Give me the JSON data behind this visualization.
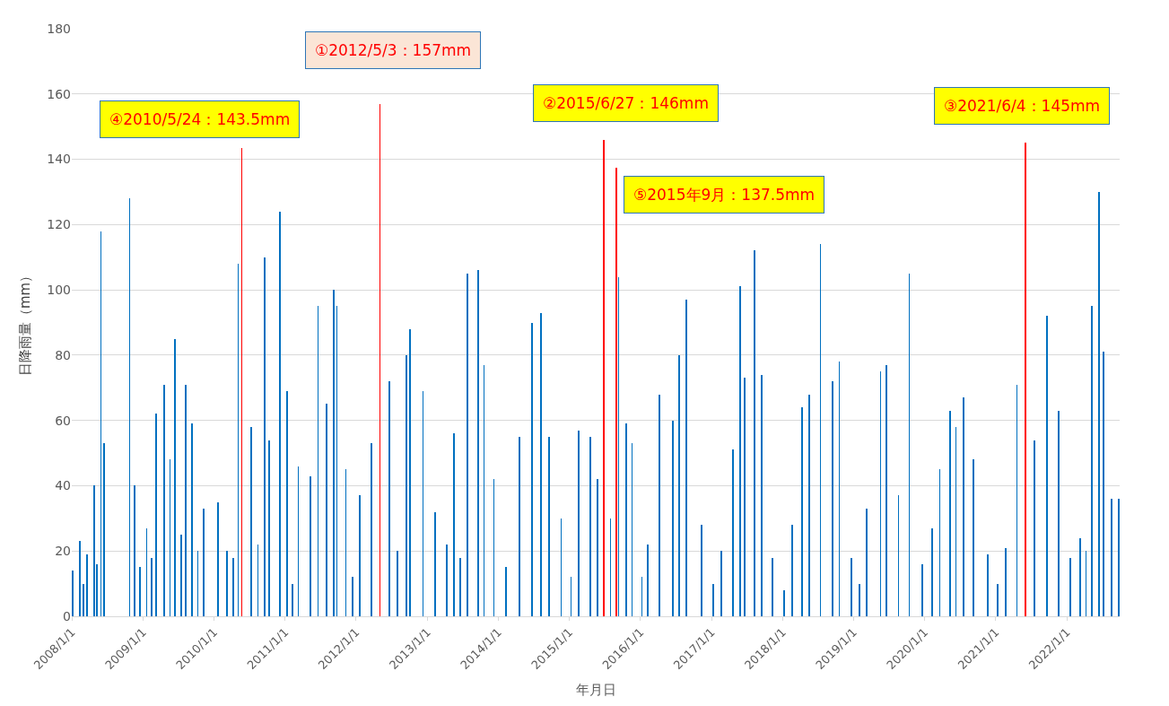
{
  "chart_data": {
    "type": "bar",
    "xlabel": "年月日",
    "ylabel": "日降雨量（mm）",
    "x": [
      "2008-01-05",
      "2008-02-10",
      "2008-03-01",
      "2008-03-20",
      "2008-04-25",
      "2008-05-10",
      "2008-05-30",
      "2008-06-15",
      "2008-10-25",
      "2008-11-20",
      "2008-12-15",
      "2009-01-20",
      "2009-02-15",
      "2009-03-10",
      "2009-04-20",
      "2009-05-20",
      "2009-06-15",
      "2009-07-15",
      "2009-08-10",
      "2009-09-10",
      "2009-10-10",
      "2009-11-10",
      "2010-01-20",
      "2010-03-10",
      "2010-04-10",
      "2010-05-05",
      "2010-05-24",
      "2010-07-10",
      "2010-08-15",
      "2010-09-20",
      "2010-10-10",
      "2010-12-05",
      "2011-01-10",
      "2011-02-10",
      "2011-03-10",
      "2011-05-10",
      "2011-06-20",
      "2011-08-01",
      "2011-09-10",
      "2011-09-25",
      "2011-11-10",
      "2011-12-15",
      "2012-01-20",
      "2012-03-20",
      "2012-05-03",
      "2012-06-20",
      "2012-08-01",
      "2012-09-15",
      "2012-10-05",
      "2012-12-10",
      "2013-02-10",
      "2013-04-10",
      "2013-05-20",
      "2013-06-20",
      "2013-07-28",
      "2013-09-20",
      "2013-10-20",
      "2013-12-10",
      "2014-02-10",
      "2014-04-20",
      "2014-06-25",
      "2014-08-10",
      "2014-09-20",
      "2014-11-20",
      "2015-01-10",
      "2015-02-20",
      "2015-04-20",
      "2015-05-25",
      "2015-06-27",
      "2015-08-01",
      "2015-09",
      "2015-09-12",
      "2015-10-20",
      "2015-11-20",
      "2016-01-10",
      "2016-02-10",
      "2016-04-10",
      "2016-06-15",
      "2016-07-20",
      "2016-08-25",
      "2016-11-10",
      "2017-01-10",
      "2017-02-20",
      "2017-04-20",
      "2017-05-30",
      "2017-06-20",
      "2017-08-10",
      "2017-09-15",
      "2017-11-10",
      "2018-01-10",
      "2018-02-20",
      "2018-04-10",
      "2018-05-20",
      "2018-07-15",
      "2018-09-15",
      "2018-10-20",
      "2018-12-20",
      "2019-02-01",
      "2019-03-10",
      "2019-05-20",
      "2019-06-20",
      "2019-08-20",
      "2019-10-15",
      "2019-12-20",
      "2020-02-10",
      "2020-03-20",
      "2020-05-10",
      "2020-06-10",
      "2020-07-20",
      "2020-09-10",
      "2020-11-20",
      "2021-01-10",
      "2021-02-20",
      "2021-04-20",
      "2021-06-04",
      "2021-07-20",
      "2021-09-20",
      "2021-11-20",
      "2022-01-20",
      "2022-03-10",
      "2022-04-10",
      "2022-05-10",
      "2022-06-15",
      "2022-07-10",
      "2022-08-20",
      "2022-09-25"
    ],
    "values": [
      14,
      23,
      10,
      19,
      40,
      16,
      118,
      53,
      128,
      40,
      15,
      27,
      18,
      62,
      71,
      48,
      85,
      25,
      71,
      59,
      20,
      33,
      35,
      20,
      18,
      108,
      143.5,
      58,
      22,
      110,
      54,
      124,
      69,
      10,
      46,
      43,
      95,
      65,
      100,
      95,
      45,
      12,
      37,
      53,
      157,
      72,
      20,
      80,
      88,
      69,
      32,
      22,
      56,
      18,
      105,
      106,
      77,
      42,
      15,
      55,
      90,
      93,
      55,
      30,
      12,
      57,
      55,
      42,
      146,
      30,
      137.5,
      104,
      59,
      53,
      12,
      22,
      68,
      60,
      80,
      97,
      28,
      10,
      20,
      51,
      101,
      73,
      112,
      74,
      18,
      8,
      28,
      64,
      68,
      114,
      72,
      78,
      18,
      10,
      33,
      75,
      77,
      37,
      105,
      16,
      27,
      45,
      63,
      58,
      67,
      48,
      19,
      10,
      21,
      71,
      145,
      54,
      92,
      63,
      18,
      24,
      20,
      95,
      130,
      81,
      36,
      36
    ],
    "colors": [
      "#0070c0",
      "#0070c0",
      "#0070c0",
      "#0070c0",
      "#0070c0",
      "#0070c0",
      "#0070c0",
      "#0070c0",
      "#0070c0",
      "#0070c0",
      "#0070c0",
      "#0070c0",
      "#0070c0",
      "#0070c0",
      "#0070c0",
      "#0070c0",
      "#0070c0",
      "#0070c0",
      "#0070c0",
      "#0070c0",
      "#0070c0",
      "#0070c0",
      "#0070c0",
      "#0070c0",
      "#0070c0",
      "#0070c0",
      "#ff0000",
      "#0070c0",
      "#0070c0",
      "#0070c0",
      "#0070c0",
      "#0070c0",
      "#0070c0",
      "#0070c0",
      "#0070c0",
      "#0070c0",
      "#0070c0",
      "#0070c0",
      "#0070c0",
      "#0070c0",
      "#0070c0",
      "#0070c0",
      "#0070c0",
      "#0070c0",
      "#ff0000",
      "#0070c0",
      "#0070c0",
      "#0070c0",
      "#0070c0",
      "#0070c0",
      "#0070c0",
      "#0070c0",
      "#0070c0",
      "#0070c0",
      "#0070c0",
      "#0070c0",
      "#0070c0",
      "#0070c0",
      "#0070c0",
      "#0070c0",
      "#0070c0",
      "#0070c0",
      "#0070c0",
      "#0070c0",
      "#0070c0",
      "#0070c0",
      "#0070c0",
      "#0070c0",
      "#ff0000",
      "#0070c0",
      "#ff0000",
      "#0070c0",
      "#0070c0",
      "#0070c0",
      "#0070c0",
      "#0070c0",
      "#0070c0",
      "#0070c0",
      "#0070c0",
      "#0070c0",
      "#0070c0",
      "#0070c0",
      "#0070c0",
      "#0070c0",
      "#0070c0",
      "#0070c0",
      "#0070c0",
      "#0070c0",
      "#0070c0",
      "#0070c0",
      "#0070c0",
      "#0070c0",
      "#0070c0",
      "#0070c0",
      "#0070c0",
      "#0070c0",
      "#0070c0",
      "#0070c0",
      "#0070c0",
      "#0070c0",
      "#0070c0",
      "#0070c0",
      "#0070c0",
      "#0070c0",
      "#0070c0",
      "#0070c0",
      "#0070c0",
      "#0070c0",
      "#0070c0",
      "#0070c0",
      "#0070c0",
      "#0070c0",
      "#0070c0",
      "#0070c0",
      "#ff0000",
      "#0070c0",
      "#0070c0",
      "#0070c0",
      "#0070c0",
      "#0070c0",
      "#0070c0",
      "#0070c0",
      "#0070c0",
      "#0070c0",
      "#0070c0",
      "#0070c0"
    ],
    "xlim": [
      "2008-01-01",
      "2022-09-30"
    ],
    "xticks": [
      {
        "value": "2008-01-01",
        "label": "2008/1/1"
      },
      {
        "value": "2009-01-01",
        "label": "2009/1/1"
      },
      {
        "value": "2010-01-01",
        "label": "2010/1/1"
      },
      {
        "value": "2011-01-01",
        "label": "2011/1/1"
      },
      {
        "value": "2012-01-01",
        "label": "2012/1/1"
      },
      {
        "value": "2013-01-01",
        "label": "2013/1/1"
      },
      {
        "value": "2014-01-01",
        "label": "2014/1/1"
      },
      {
        "value": "2015-01-01",
        "label": "2015/1/1"
      },
      {
        "value": "2016-01-01",
        "label": "2016/1/1"
      },
      {
        "value": "2017-01-01",
        "label": "2017/1/1"
      },
      {
        "value": "2018-01-01",
        "label": "2018/1/1"
      },
      {
        "value": "2019-01-01",
        "label": "2019/1/1"
      },
      {
        "value": "2020-01-01",
        "label": "2020/1/1"
      },
      {
        "value": "2021-01-01",
        "label": "2021/1/1"
      },
      {
        "value": "2022-01-01",
        "label": "2022/1/1"
      }
    ],
    "ylim": [
      0,
      180
    ],
    "yticks": [
      0,
      20,
      40,
      60,
      80,
      100,
      120,
      140,
      160,
      180
    ],
    "grid": "y",
    "annotations": [
      {
        "text": "①2012/5/3：157mm",
        "x": "2012-05-03",
        "y": 157
      },
      {
        "text": "②2015/6/27：146mm",
        "x": "2015-06-27",
        "y": 146
      },
      {
        "text": "③2021/6/4：145mm",
        "x": "2021-06-04",
        "y": 145
      },
      {
        "text": "④2010/5/24：143.5mm",
        "x": "2010-05-24",
        "y": 143.5
      },
      {
        "text": "⑤2015年9月：137.5mm",
        "x": "2015-09",
        "y": 137.5
      }
    ]
  }
}
